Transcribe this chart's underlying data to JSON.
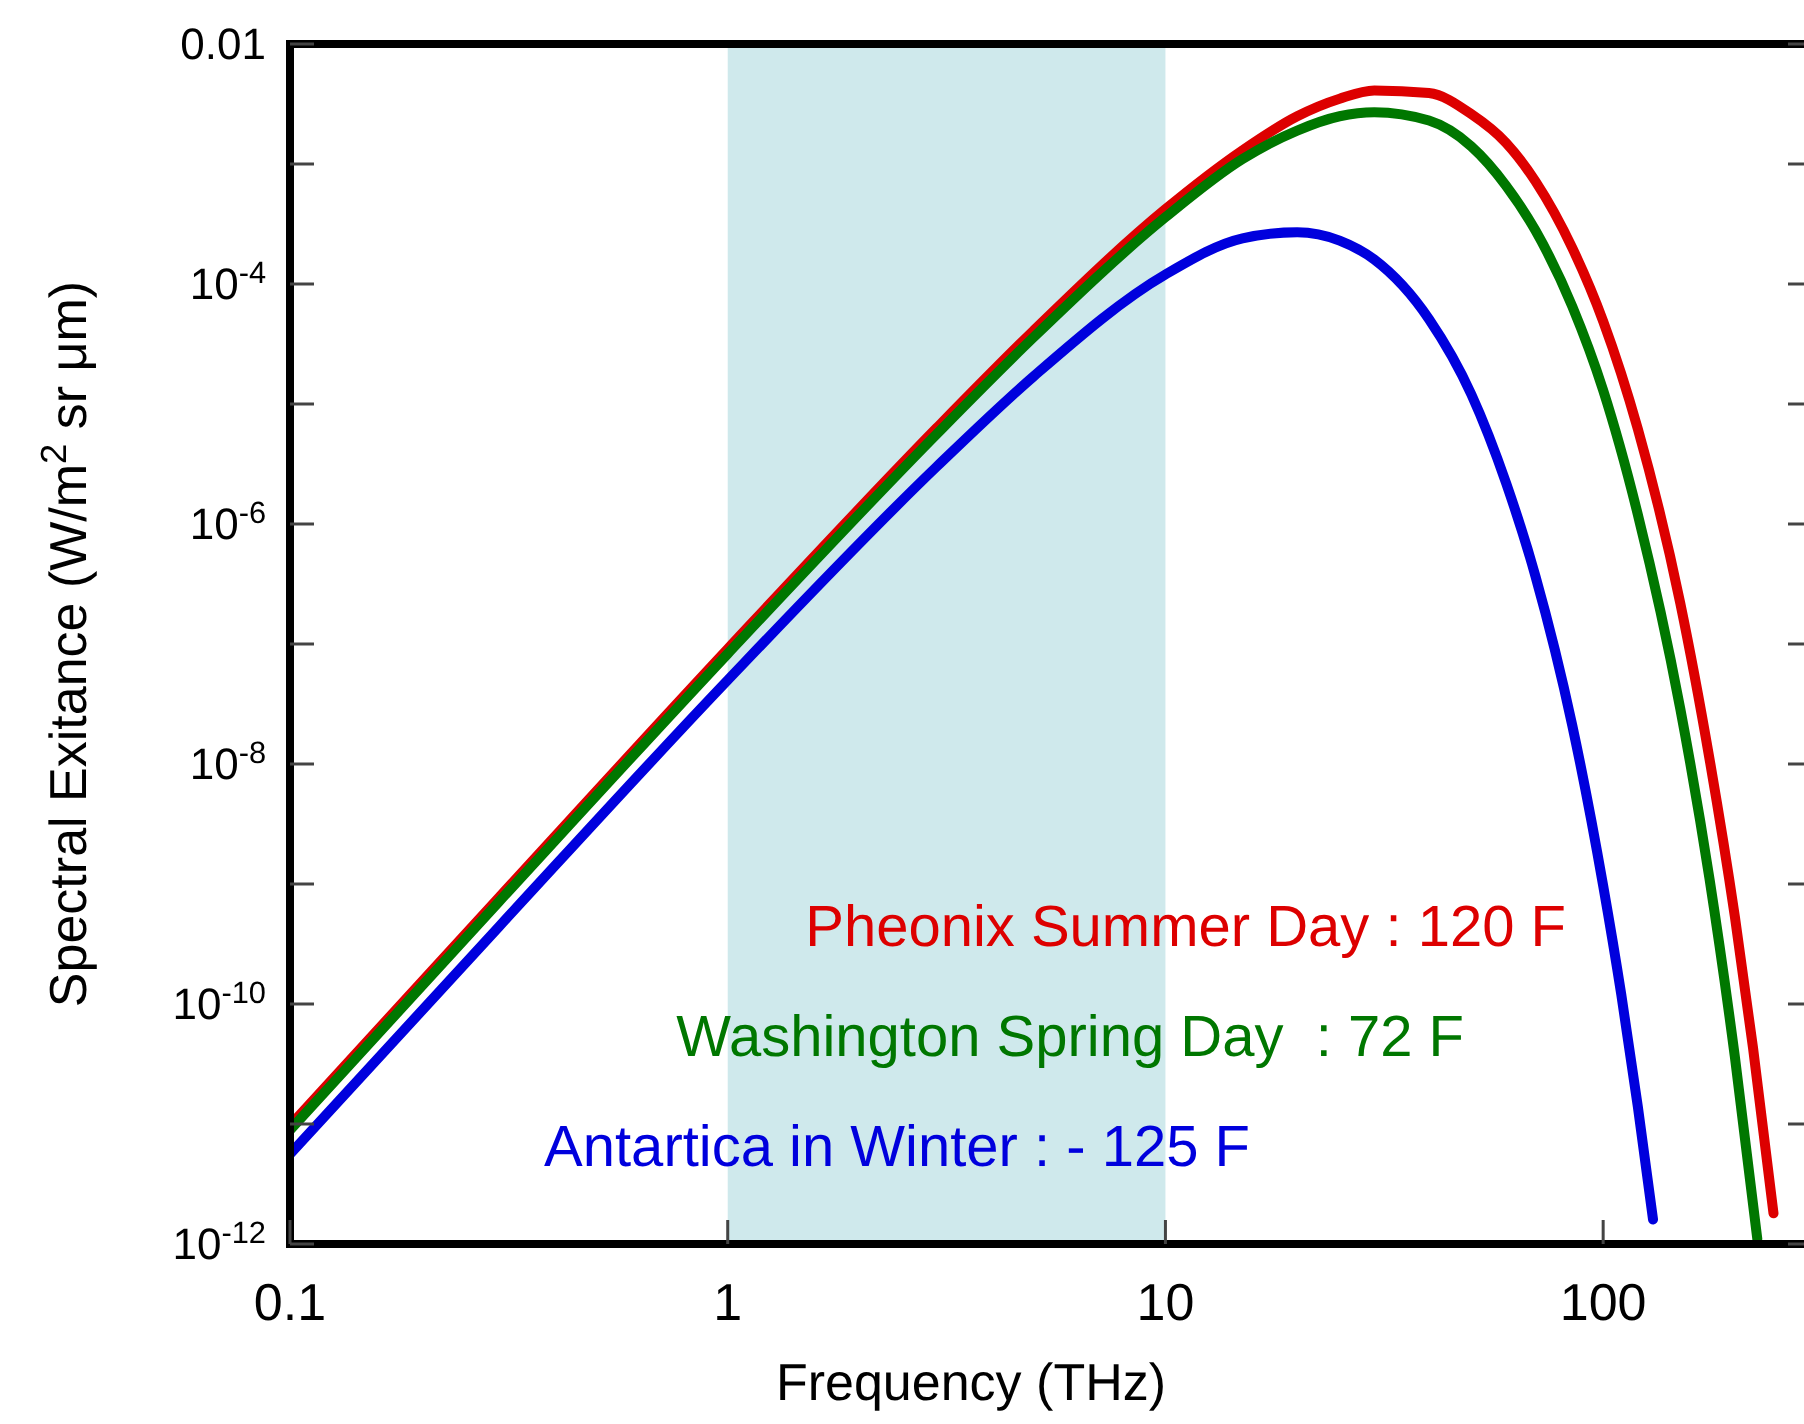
{
  "chart_data": {
    "type": "line",
    "xlabel": "Frequency (THz)",
    "ylabel": "Spectral Exitance (W/m$^{2}$ sr μm)",
    "log": "xy",
    "xlim": [
      0.1,
      300
    ],
    "xticks": [
      0.1,
      1,
      10,
      100
    ],
    "ylim": [
      1e-12,
      0.01
    ],
    "yticks": [
      {
        "value": 1e-12,
        "label": "10$^{-12}$"
      },
      {
        "value": 1e-11,
        "label": null
      },
      {
        "value": 1e-10,
        "label": "10$^{-10}$"
      },
      {
        "value": 1e-09,
        "label": null
      },
      {
        "value": 1e-08,
        "label": "10$^{-8}$"
      },
      {
        "value": 1e-07,
        "label": null
      },
      {
        "value": 1e-06,
        "label": "10$^{-6}$"
      },
      {
        "value": 1e-05,
        "label": null
      },
      {
        "value": 0.0001,
        "label": "10$^{-4}$"
      },
      {
        "value": 0.001,
        "label": null
      },
      {
        "value": 0.01,
        "label": "0.01"
      }
    ],
    "grid": false,
    "legend": false,
    "line_style": "solid",
    "marker": "none",
    "bands": [
      {
        "axis": "x",
        "from": 1,
        "to": 10,
        "color": "#cfe9ec"
      }
    ],
    "series": [
      {
        "name": "Pheonix Summer Day : 120 F",
        "color": "#dd0000",
        "x": [
          0.1,
          0.3,
          1,
          3,
          5,
          10,
          15,
          20,
          25,
          30,
          40,
          50,
          60,
          70,
          85,
          100,
          120,
          150,
          175,
          200,
          220,
          245
        ],
        "values": [
          9.7e-12,
          7.7e-10,
          9.1e-08,
          6.3e-06,
          4.1e-05,
          0.00042,
          0.0013,
          0.0025,
          0.0035,
          0.0041,
          0.0039,
          0.0026,
          0.0015,
          0.00072,
          0.0002,
          4.9e-05,
          6.2e-06,
          2.2e-07,
          1.1e-08,
          5.3e-10,
          4.3e-11,
          1.8e-12
        ]
      },
      {
        "name": "Washington Spring Day  : 72 F",
        "color": "#007700",
        "x": [
          0.1,
          0.3,
          1,
          3,
          5,
          10,
          15,
          20,
          25,
          30,
          40,
          50,
          60,
          70,
          85,
          100,
          120,
          150,
          175,
          200,
          225
        ],
        "values": [
          8.9e-12,
          7.1e-10,
          8.3e-08,
          5.6e-06,
          3.6e-05,
          0.00036,
          0.0011,
          0.0019,
          0.0025,
          0.0027,
          0.0023,
          0.0014,
          0.00066,
          0.00028,
          6.5e-05,
          1.3e-05,
          1.2e-06,
          2.9e-08,
          1.1e-09,
          3.6e-11,
          1.1e-12
        ]
      },
      {
        "name": "Antartica in Winter : - 125 F",
        "color": "#0000dd",
        "x": [
          0.1,
          0.3,
          1,
          3,
          5,
          10,
          15,
          20,
          25,
          30,
          40,
          50,
          60,
          70,
          85,
          100,
          110,
          120,
          130
        ],
        "values": [
          5.6e-12,
          4.4e-10,
          5e-08,
          3e-06,
          1.7e-05,
          0.00012,
          0.00024,
          0.00027,
          0.00023,
          0.00016,
          5.1e-05,
          1.2e-05,
          2.2e-06,
          3.7e-07,
          2.1e-08,
          9.7e-10,
          1.2e-10,
          1.4e-11,
          1.6e-12
        ]
      }
    ]
  }
}
